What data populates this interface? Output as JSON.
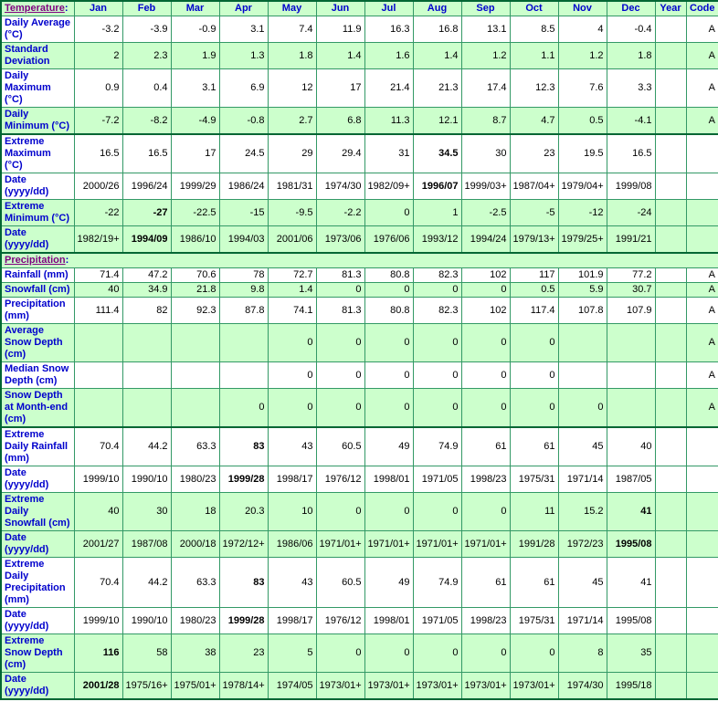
{
  "colors": {
    "row_green": "#ccffcc",
    "row_white": "#ffffff",
    "border_green": "#339966",
    "border_dark_green": "#006633",
    "label_blue": "#0000cc",
    "section_link_purple": "#800080",
    "value_black": "#000000"
  },
  "table": {
    "month_columns": [
      "Jan",
      "Feb",
      "Mar",
      "Apr",
      "May",
      "Jun",
      "Jul",
      "Aug",
      "Sep",
      "Oct",
      "Nov",
      "Dec"
    ],
    "extra_columns": [
      "Year",
      "Code"
    ],
    "sections": [
      {
        "title": "Temperature",
        "title_suffix": ":",
        "rows": [
          {
            "label": "Daily Average (°C)",
            "shade": "white",
            "thick_top": false,
            "bold_index": null,
            "year": "",
            "code": "A",
            "values": [
              "-3.2",
              "-3.9",
              "-0.9",
              "3.1",
              "7.4",
              "11.9",
              "16.3",
              "16.8",
              "13.1",
              "8.5",
              "4",
              "-0.4"
            ]
          },
          {
            "label": "Standard Deviation",
            "shade": "green",
            "thick_top": false,
            "bold_index": null,
            "year": "",
            "code": "A",
            "values": [
              "2",
              "2.3",
              "1.9",
              "1.3",
              "1.8",
              "1.4",
              "1.6",
              "1.4",
              "1.2",
              "1.1",
              "1.2",
              "1.8"
            ]
          },
          {
            "label": "Daily Maximum (°C)",
            "shade": "white",
            "thick_top": false,
            "bold_index": null,
            "year": "",
            "code": "A",
            "values": [
              "0.9",
              "0.4",
              "3.1",
              "6.9",
              "12",
              "17",
              "21.4",
              "21.3",
              "17.4",
              "12.3",
              "7.6",
              "3.3"
            ]
          },
          {
            "label": "Daily Minimum (°C)",
            "shade": "green",
            "thick_top": false,
            "bold_index": null,
            "year": "",
            "code": "A",
            "values": [
              "-7.2",
              "-8.2",
              "-4.9",
              "-0.8",
              "2.7",
              "6.8",
              "11.3",
              "12.1",
              "8.7",
              "4.7",
              "0.5",
              "-4.1"
            ]
          },
          {
            "label": "Extreme Maximum (°C)",
            "shade": "white",
            "thick_top": true,
            "bold_index": 7,
            "year": "",
            "code": "",
            "values": [
              "16.5",
              "16.5",
              "17",
              "24.5",
              "29",
              "29.4",
              "31",
              "34.5",
              "30",
              "23",
              "19.5",
              "16.5"
            ]
          },
          {
            "label": "Date (yyyy/dd)",
            "shade": "white",
            "thick_top": false,
            "bold_index": 7,
            "year": "",
            "code": "",
            "values": [
              "2000/26",
              "1996/24",
              "1999/29",
              "1986/24",
              "1981/31",
              "1974/30",
              "1982/09+",
              "1996/07",
              "1999/03+",
              "1987/04+",
              "1979/04+",
              "1999/08"
            ]
          },
          {
            "label": "Extreme Minimum (°C)",
            "shade": "green",
            "thick_top": false,
            "bold_index": 1,
            "year": "",
            "code": "",
            "values": [
              "-22",
              "-27",
              "-22.5",
              "-15",
              "-9.5",
              "-2.2",
              "0",
              "1",
              "-2.5",
              "-5",
              "-12",
              "-24"
            ]
          },
          {
            "label": "Date (yyyy/dd)",
            "shade": "green",
            "thick_top": false,
            "bold_index": 1,
            "year": "",
            "code": "",
            "values": [
              "1982/19+",
              "1994/09",
              "1986/10",
              "1994/03",
              "2001/06",
              "1973/06",
              "1976/06",
              "1993/12",
              "1994/24",
              "1979/13+",
              "1979/25+",
              "1991/21"
            ]
          }
        ]
      },
      {
        "title": "Precipitation",
        "title_suffix": ":",
        "rows": [
          {
            "label": "Rainfall (mm)",
            "shade": "white",
            "thick_top": false,
            "bold_index": null,
            "year": "",
            "code": "A",
            "values": [
              "71.4",
              "47.2",
              "70.6",
              "78",
              "72.7",
              "81.3",
              "80.8",
              "82.3",
              "102",
              "117",
              "101.9",
              "77.2"
            ]
          },
          {
            "label": "Snowfall (cm)",
            "shade": "green",
            "thick_top": false,
            "bold_index": null,
            "year": "",
            "code": "A",
            "values": [
              "40",
              "34.9",
              "21.8",
              "9.8",
              "1.4",
              "0",
              "0",
              "0",
              "0",
              "0.5",
              "5.9",
              "30.7"
            ]
          },
          {
            "label": "Precipitation (mm)",
            "shade": "white",
            "thick_top": false,
            "bold_index": null,
            "year": "",
            "code": "A",
            "values": [
              "111.4",
              "82",
              "92.3",
              "87.8",
              "74.1",
              "81.3",
              "80.8",
              "82.3",
              "102",
              "117.4",
              "107.8",
              "107.9"
            ]
          },
          {
            "label": "Average Snow Depth (cm)",
            "shade": "green",
            "thick_top": false,
            "bold_index": null,
            "year": "",
            "code": "A",
            "values": [
              "",
              "",
              "",
              "",
              "0",
              "0",
              "0",
              "0",
              "0",
              "0",
              "",
              ""
            ]
          },
          {
            "label": "Median Snow Depth (cm)",
            "shade": "white",
            "thick_top": false,
            "bold_index": null,
            "year": "",
            "code": "A",
            "values": [
              "",
              "",
              "",
              "",
              "0",
              "0",
              "0",
              "0",
              "0",
              "0",
              "",
              ""
            ]
          },
          {
            "label": "Snow Depth at Month-end (cm)",
            "shade": "green",
            "thick_top": false,
            "bold_index": null,
            "year": "",
            "code": "A",
            "values": [
              "",
              "",
              "",
              "0",
              "0",
              "0",
              "0",
              "0",
              "0",
              "0",
              "0",
              ""
            ]
          },
          {
            "label": "Extreme Daily Rainfall (mm)",
            "shade": "white",
            "thick_top": true,
            "bold_index": 3,
            "year": "",
            "code": "",
            "values": [
              "70.4",
              "44.2",
              "63.3",
              "83",
              "43",
              "60.5",
              "49",
              "74.9",
              "61",
              "61",
              "45",
              "40"
            ]
          },
          {
            "label": "Date (yyyy/dd)",
            "shade": "white",
            "thick_top": false,
            "bold_index": 3,
            "year": "",
            "code": "",
            "values": [
              "1999/10",
              "1990/10",
              "1980/23",
              "1999/28",
              "1998/17",
              "1976/12",
              "1998/01",
              "1971/05",
              "1998/23",
              "1975/31",
              "1971/14",
              "1987/05"
            ]
          },
          {
            "label": "Extreme Daily Snowfall (cm)",
            "shade": "green",
            "thick_top": false,
            "bold_index": 11,
            "year": "",
            "code": "",
            "values": [
              "40",
              "30",
              "18",
              "20.3",
              "10",
              "0",
              "0",
              "0",
              "0",
              "11",
              "15.2",
              "41"
            ]
          },
          {
            "label": "Date (yyyy/dd)",
            "shade": "green",
            "thick_top": false,
            "bold_index": 11,
            "year": "",
            "code": "",
            "values": [
              "2001/27",
              "1987/08",
              "2000/18",
              "1972/12+",
              "1986/06",
              "1971/01+",
              "1971/01+",
              "1971/01+",
              "1971/01+",
              "1991/28",
              "1972/23",
              "1995/08"
            ]
          },
          {
            "label": "Extreme Daily Precipitation (mm)",
            "shade": "white",
            "thick_top": false,
            "bold_index": 3,
            "year": "",
            "code": "",
            "values": [
              "70.4",
              "44.2",
              "63.3",
              "83",
              "43",
              "60.5",
              "49",
              "74.9",
              "61",
              "61",
              "45",
              "41"
            ]
          },
          {
            "label": "Date (yyyy/dd)",
            "shade": "white",
            "thick_top": false,
            "bold_index": 3,
            "year": "",
            "code": "",
            "values": [
              "1999/10",
              "1990/10",
              "1980/23",
              "1999/28",
              "1998/17",
              "1976/12",
              "1998/01",
              "1971/05",
              "1998/23",
              "1975/31",
              "1971/14",
              "1995/08"
            ]
          },
          {
            "label": "Extreme Snow Depth (cm)",
            "shade": "green",
            "thick_top": false,
            "bold_index": 0,
            "year": "",
            "code": "",
            "values": [
              "116",
              "58",
              "38",
              "23",
              "5",
              "0",
              "0",
              "0",
              "0",
              "0",
              "8",
              "35"
            ]
          },
          {
            "label": "Date (yyyy/dd)",
            "shade": "green",
            "thick_top": false,
            "bold_index": 0,
            "year": "",
            "code": "",
            "values": [
              "2001/28",
              "1975/16+",
              "1975/01+",
              "1978/14+",
              "1974/05",
              "1973/01+",
              "1973/01+",
              "1973/01+",
              "1973/01+",
              "1973/01+",
              "1974/30",
              "1995/18"
            ]
          }
        ]
      }
    ]
  }
}
